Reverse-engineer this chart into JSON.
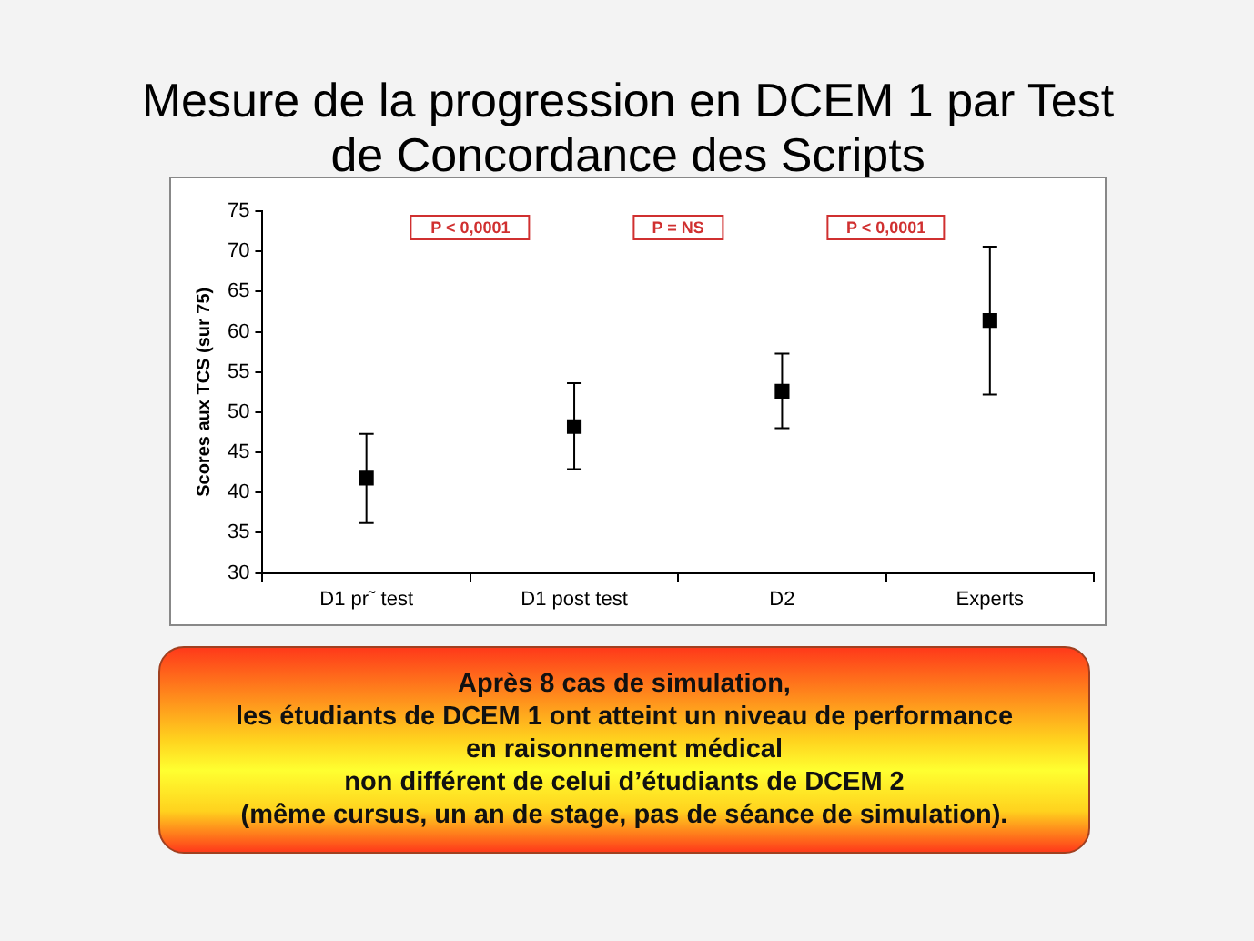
{
  "chart_data": {
    "type": "scatter",
    "title": "Mesure de la progression en DCEM 1 par Test de Concordance des Scripts",
    "ylabel": "Scores aux TCS (sur 75)",
    "categories": [
      "D1 pr˜ test",
      "D1 post test",
      "D2",
      "Experts"
    ],
    "series": [
      {
        "color": "#000000",
        "values": [
          41.8,
          48.2,
          52.6,
          61.4
        ],
        "errors": [
          [
            36.2,
            47.3
          ],
          [
            42.9,
            53.6
          ],
          [
            48.0,
            57.3
          ],
          [
            52.2,
            70.6
          ]
        ]
      }
    ],
    "ylim": [
      30,
      75
    ],
    "yticks": [
      30,
      35,
      40,
      45,
      50,
      55,
      60,
      65,
      70,
      75
    ],
    "grid": false,
    "legend": false,
    "marker": "square",
    "annotations": [
      "P < 0,0001",
      "P = NS",
      "P < 0,0001",
      "Après 8 cas de simulation,\nles étudiants de DCEM 1 ont atteint un niveau de performance\nen raisonnement médical\nnon différent de celui d’étudiants de DCEM 2\n(même cursus, un an de stage, pas de séance de simulation)."
    ]
  }
}
